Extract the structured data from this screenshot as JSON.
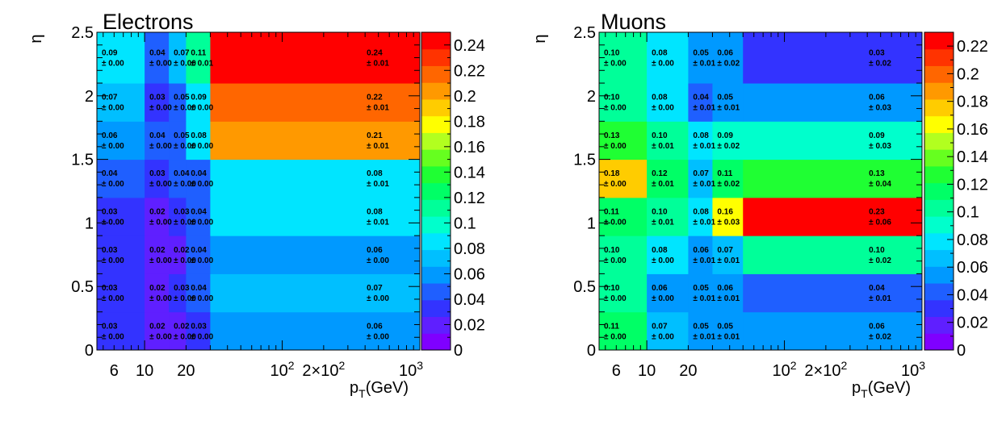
{
  "chart_data": [
    {
      "type": "heatmap",
      "title": "Electrons",
      "xlabel": "p_T(GeV)",
      "ylabel": "η",
      "x_scale": "log",
      "xlim": [
        4.5,
        1000
      ],
      "ylim": [
        0,
        2.5
      ],
      "x_ticks": [
        "6",
        "10",
        "20",
        "10^2",
        "2×10^2",
        "10^3"
      ],
      "y_ticks": [
        "0",
        "0.5",
        "1",
        "1.5",
        "2",
        "2.5"
      ],
      "x_bin_edges": [
        4.5,
        10,
        15,
        20,
        30,
        1000
      ],
      "y_bin_edges": [
        0,
        0.3,
        0.6,
        0.9,
        1.2,
        1.5,
        1.8,
        2.1,
        2.5
      ],
      "colorbar": {
        "min": 0,
        "max": 0.25,
        "ticks": [
          "0",
          "0.02",
          "0.04",
          "0.06",
          "0.08",
          "0.1",
          "0.12",
          "0.14",
          "0.16",
          "0.18",
          "0.2",
          "0.22",
          "0.24"
        ]
      },
      "cells": [
        [
          "0.03",
          "0.02",
          "0.02",
          "0.03",
          "0.06"
        ],
        [
          "0.03",
          "0.02",
          "0.03",
          "0.04",
          "0.07"
        ],
        [
          "0.03",
          "0.02",
          "0.02",
          "0.04",
          "0.06"
        ],
        [
          "0.03",
          "0.02",
          "0.03",
          "0.04",
          "0.08"
        ],
        [
          "0.04",
          "0.03",
          "0.04",
          "0.04",
          "0.08"
        ],
        [
          "0.06",
          "0.04",
          "0.05",
          "0.08",
          "0.21"
        ],
        [
          "0.07",
          "0.03",
          "0.05",
          "0.09",
          "0.22"
        ],
        [
          "0.09",
          "0.04",
          "0.07",
          "0.11",
          "0.24"
        ]
      ],
      "errors": [
        [
          "± 0.00",
          "± 0.00",
          "± 0.00",
          "± 0.00",
          "± 0.00"
        ],
        [
          "± 0.00",
          "± 0.00",
          "± 0.00",
          "± 0.00",
          "± 0.00"
        ],
        [
          "± 0.00",
          "± 0.00",
          "± 0.00",
          "± 0.00",
          "± 0.00"
        ],
        [
          "± 0.00",
          "± 0.00",
          "± 0.00",
          "± 0.00",
          "± 0.01"
        ],
        [
          "± 0.00",
          "± 0.00",
          "± 0.00",
          "± 0.00",
          "± 0.01"
        ],
        [
          "± 0.00",
          "± 0.00",
          "± 0.00",
          "± 0.00",
          "± 0.01"
        ],
        [
          "± 0.00",
          "± 0.00",
          "± 0.00",
          "± 0.00",
          "± 0.01"
        ],
        [
          "± 0.00",
          "± 0.00",
          "± 0.00",
          "± 0.01",
          "± 0.01"
        ]
      ]
    },
    {
      "type": "heatmap",
      "title": "Muons",
      "xlabel": "p_T(GeV)",
      "ylabel": "η",
      "x_scale": "log",
      "xlim": [
        4.5,
        1000
      ],
      "ylim": [
        0,
        2.5
      ],
      "x_ticks": [
        "6",
        "10",
        "20",
        "10^2",
        "2×10^2",
        "10^3"
      ],
      "y_ticks": [
        "0",
        "0.5",
        "1",
        "1.5",
        "2",
        "2.5"
      ],
      "x_bin_edges": [
        4.5,
        10,
        20,
        30,
        50,
        1000
      ],
      "y_bin_edges": [
        0,
        0.3,
        0.6,
        0.9,
        1.2,
        1.5,
        1.8,
        2.1,
        2.5
      ],
      "colorbar": {
        "min": 0,
        "max": 0.23,
        "ticks": [
          "0",
          "0.02",
          "0.04",
          "0.06",
          "0.08",
          "0.1",
          "0.12",
          "0.14",
          "0.16",
          "0.18",
          "0.2",
          "0.22"
        ]
      },
      "cells": [
        [
          "0.11",
          "0.07",
          "0.05",
          "0.05",
          "0.06"
        ],
        [
          "0.10",
          "0.06",
          "0.05",
          "0.06",
          "0.04"
        ],
        [
          "0.10",
          "0.08",
          "0.06",
          "0.07",
          "0.10"
        ],
        [
          "0.11",
          "0.10",
          "0.08",
          "0.16",
          "0.23"
        ],
        [
          "0.18",
          "0.12",
          "0.07",
          "0.11",
          "0.13"
        ],
        [
          "0.13",
          "0.10",
          "0.08",
          "0.09",
          "0.09"
        ],
        [
          "0.10",
          "0.08",
          "0.04",
          "0.05",
          "0.06"
        ],
        [
          "0.10",
          "0.08",
          "0.05",
          "0.06",
          "0.03"
        ]
      ],
      "errors": [
        [
          "± 0.00",
          "± 0.00",
          "± 0.01",
          "± 0.01",
          "± 0.02"
        ],
        [
          "± 0.00",
          "± 0.00",
          "± 0.01",
          "± 0.01",
          "± 0.01"
        ],
        [
          "± 0.00",
          "± 0.00",
          "± 0.01",
          "± 0.01",
          "± 0.02"
        ],
        [
          "± 0.00",
          "± 0.01",
          "± 0.01",
          "± 0.03",
          "± 0.06"
        ],
        [
          "± 0.00",
          "± 0.01",
          "± 0.01",
          "± 0.02",
          "± 0.04"
        ],
        [
          "± 0.00",
          "± 0.01",
          "± 0.01",
          "± 0.02",
          "± 0.03"
        ],
        [
          "± 0.00",
          "± 0.00",
          "± 0.01",
          "± 0.01",
          "± 0.03"
        ],
        [
          "± 0.00",
          "± 0.00",
          "± 0.01",
          "± 0.02",
          "± 0.02"
        ]
      ]
    }
  ],
  "palette": [
    "#7f00ff",
    "#5f1fff",
    "#3333ff",
    "#1f5fff",
    "#0099ff",
    "#00bfff",
    "#00e5ff",
    "#00ffcc",
    "#00ff99",
    "#00ff66",
    "#1fff33",
    "#66ff1f",
    "#b2ff1f",
    "#ffff00",
    "#ffcc00",
    "#ff9900",
    "#ff6600",
    "#ff3300",
    "#ff0000"
  ]
}
